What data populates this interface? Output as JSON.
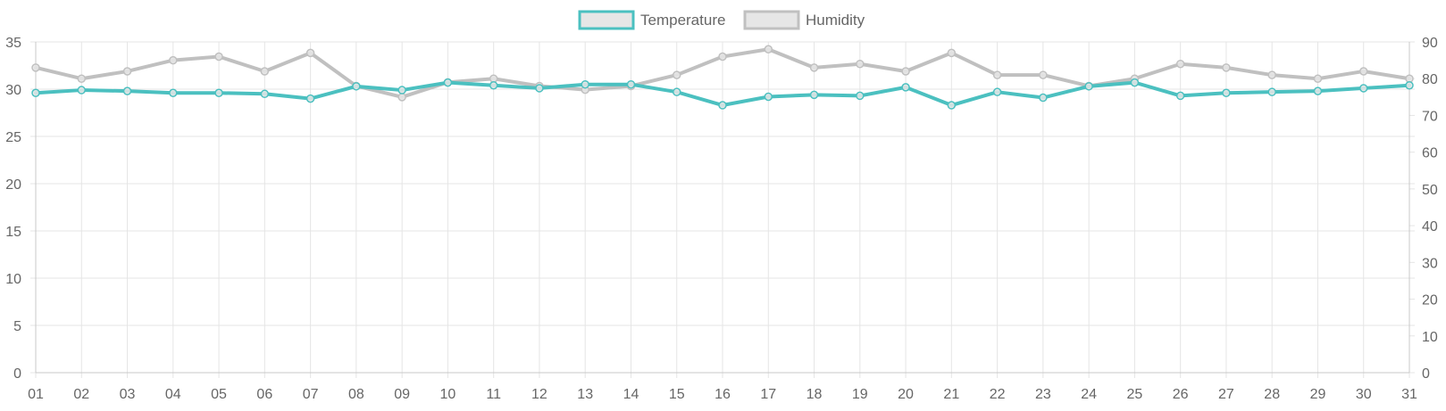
{
  "chart_data": {
    "type": "line",
    "title": "",
    "xlabel": "",
    "ylabel": "",
    "ylabel_right": "",
    "x": [
      "01",
      "02",
      "03",
      "04",
      "05",
      "06",
      "07",
      "08",
      "09",
      "10",
      "11",
      "12",
      "13",
      "14",
      "15",
      "16",
      "17",
      "18",
      "19",
      "20",
      "21",
      "22",
      "23",
      "24",
      "25",
      "26",
      "27",
      "28",
      "29",
      "30",
      "31"
    ],
    "y_left_ticks": [
      "0",
      "5",
      "10",
      "15",
      "20",
      "25",
      "30",
      "35"
    ],
    "y_right_ticks": [
      "0",
      "10",
      "20",
      "30",
      "40",
      "50",
      "60",
      "70",
      "80",
      "90"
    ],
    "y_left_lim": [
      0,
      35
    ],
    "y_right_lim": [
      0,
      90
    ],
    "grid": true,
    "legend": {
      "position": "top-center",
      "items": [
        {
          "label": "Temperature",
          "color": "#4bc0c0"
        },
        {
          "label": "Humidity",
          "color": "#c0c0c0"
        }
      ]
    },
    "series": [
      {
        "name": "Temperature",
        "axis": "left",
        "color": "#4bc0c0",
        "values": [
          29.6,
          29.9,
          29.8,
          29.6,
          29.6,
          29.5,
          29.0,
          30.3,
          29.9,
          30.7,
          30.4,
          30.1,
          30.5,
          30.5,
          29.7,
          28.3,
          29.2,
          29.4,
          29.3,
          30.2,
          28.3,
          29.7,
          29.1,
          30.3,
          30.7,
          29.3,
          29.6,
          29.7,
          29.8,
          30.1,
          30.4
        ]
      },
      {
        "name": "Humidity",
        "axis": "right",
        "color": "#c0c0c0",
        "values": [
          83,
          80,
          82,
          85,
          86,
          82,
          87,
          78,
          75,
          79,
          80,
          78,
          77,
          78,
          81,
          86,
          88,
          83,
          84,
          82,
          87,
          81,
          81,
          78,
          80,
          84,
          83,
          81,
          80,
          82,
          80
        ]
      }
    ]
  }
}
